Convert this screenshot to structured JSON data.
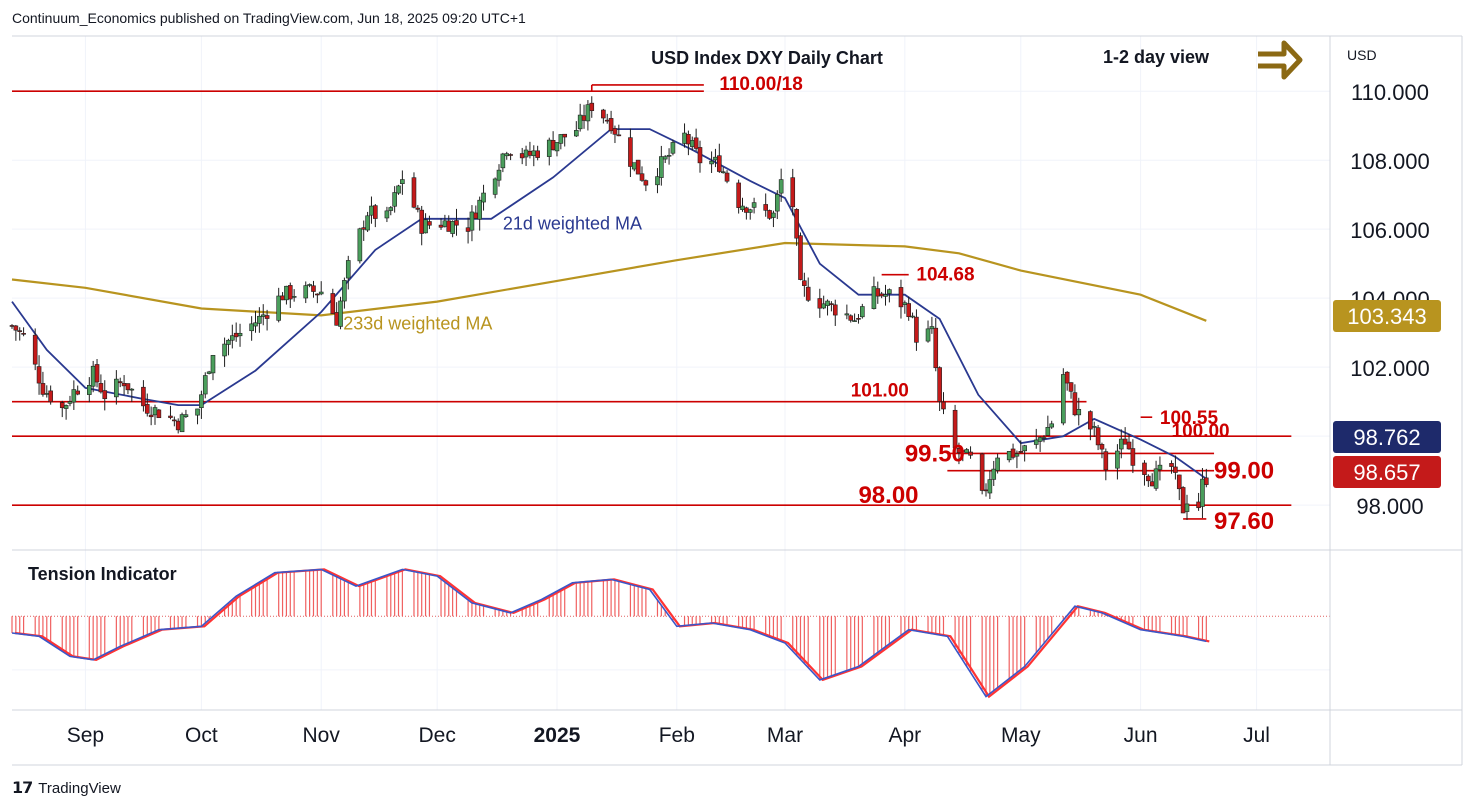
{
  "attribution": "Continuum_Economics published on TradingView.com, Jun 18, 2025 09:20 UTC+1",
  "branding": "TradingView",
  "colors": {
    "up_candle": "#4a9e5c",
    "down_candle": "#c41a1a",
    "level_line": "#cc0000",
    "ma21": "#2a3990",
    "ma233": "#b8941f",
    "tension_line": "#3b56c9",
    "tension_signal": "#ff3333",
    "arrow": "#8b6914",
    "badge_ma233": "#b8941f",
    "badge_ma21": "#1e2a6b",
    "badge_price": "#c41a1a"
  },
  "chart_data": {
    "type": "candlestick",
    "title": "USD Index DXY Daily Chart",
    "view_label": "1-2 day view",
    "icon": "right-arrow-icon",
    "currency": "USD",
    "y_ticks": [
      98,
      100,
      102,
      104,
      106,
      108,
      110
    ],
    "y_tick_labels": [
      "98.000",
      "100.000",
      "102.000",
      "104.000",
      "106.000",
      "108.000",
      "110.000"
    ],
    "ylim": [
      96.7,
      111.6
    ],
    "x_labels": [
      "Sep",
      "Oct",
      "Nov",
      "Dec",
      "2025",
      "Feb",
      "Mar",
      "Apr",
      "May",
      "Jun",
      "Jul"
    ],
    "price_path": [
      [
        "2024-08-13",
        103.2
      ],
      [
        "2024-08-16",
        102.9
      ],
      [
        "2024-08-21",
        101.4
      ],
      [
        "2024-08-26",
        100.8
      ],
      [
        "2024-08-29",
        101.3
      ],
      [
        "2024-09-03",
        101.8
      ],
      [
        "2024-09-06",
        101.2
      ],
      [
        "2024-09-11",
        101.6
      ],
      [
        "2024-09-16",
        100.9
      ],
      [
        "2024-09-20",
        100.7
      ],
      [
        "2024-09-25",
        100.4
      ],
      [
        "2024-09-30",
        100.8
      ],
      [
        "2024-10-04",
        102.5
      ],
      [
        "2024-10-10",
        102.9
      ],
      [
        "2024-10-16",
        103.4
      ],
      [
        "2024-10-22",
        104.1
      ],
      [
        "2024-10-28",
        104.2
      ],
      [
        "2024-11-01",
        104.2
      ],
      [
        "2024-11-05",
        103.4
      ],
      [
        "2024-11-08",
        104.9
      ],
      [
        "2024-11-13",
        106.5
      ],
      [
        "2024-11-18",
        106.3
      ],
      [
        "2024-11-22",
        107.5
      ],
      [
        "2024-11-27",
        106.1
      ],
      [
        "2024-12-03",
        106.2
      ],
      [
        "2024-12-09",
        106.1
      ],
      [
        "2024-12-13",
        107.0
      ],
      [
        "2024-12-19",
        108.4
      ],
      [
        "2024-12-24",
        108.1
      ],
      [
        "2024-12-31",
        108.5
      ],
      [
        "2025-01-06",
        108.9
      ],
      [
        "2025-01-10",
        109.6
      ],
      [
        "2025-01-15",
        109.1
      ],
      [
        "2025-01-20",
        108.0
      ],
      [
        "2025-01-24",
        107.4
      ],
      [
        "2025-01-29",
        108.0
      ],
      [
        "2025-02-03",
        108.7
      ],
      [
        "2025-02-07",
        108.0
      ],
      [
        "2025-02-12",
        107.9
      ],
      [
        "2025-02-17",
        106.8
      ],
      [
        "2025-02-21",
        106.6
      ],
      [
        "2025-02-26",
        106.4
      ],
      [
        "2025-02-28",
        107.4
      ],
      [
        "2025-03-03",
        106.7
      ],
      [
        "2025-03-05",
        104.3
      ],
      [
        "2025-03-10",
        103.9
      ],
      [
        "2025-03-14",
        103.7
      ],
      [
        "2025-03-19",
        103.4
      ],
      [
        "2025-03-24",
        104.1
      ],
      [
        "2025-03-28",
        104.1
      ],
      [
        "2025-04-02",
        103.7
      ],
      [
        "2025-04-04",
        102.9
      ],
      [
        "2025-04-08",
        103.0
      ],
      [
        "2025-04-10",
        100.9
      ],
      [
        "2025-04-14",
        99.6
      ],
      [
        "2025-04-18",
        99.3
      ],
      [
        "2025-04-21",
        98.2
      ],
      [
        "2025-04-25",
        99.5
      ],
      [
        "2025-04-30",
        99.5
      ],
      [
        "2025-05-05",
        99.8
      ],
      [
        "2025-05-09",
        100.4
      ],
      [
        "2025-05-12",
        101.8
      ],
      [
        "2025-05-15",
        100.8
      ],
      [
        "2025-05-20",
        100.1
      ],
      [
        "2025-05-23",
        99.1
      ],
      [
        "2025-05-28",
        99.9
      ],
      [
        "2025-05-30",
        99.4
      ],
      [
        "2025-06-04",
        98.8
      ],
      [
        "2025-06-09",
        99.1
      ],
      [
        "2025-06-12",
        97.9
      ],
      [
        "2025-06-13",
        98.2
      ],
      [
        "2025-06-16",
        98.0
      ],
      [
        "2025-06-17",
        98.6
      ],
      [
        "2025-06-18",
        98.8
      ]
    ],
    "ma21": [
      [
        "2024-08-13",
        103.9
      ],
      [
        "2024-08-22",
        102.5
      ],
      [
        "2024-09-01",
        101.4
      ],
      [
        "2024-09-15",
        101.1
      ],
      [
        "2024-09-25",
        100.9
      ],
      [
        "2024-10-01",
        100.9
      ],
      [
        "2024-10-15",
        101.9
      ],
      [
        "2024-11-01",
        103.6
      ],
      [
        "2024-11-15",
        105.4
      ],
      [
        "2024-11-27",
        106.3
      ],
      [
        "2024-12-15",
        106.3
      ],
      [
        "2024-12-31",
        107.5
      ],
      [
        "2025-01-15",
        108.9
      ],
      [
        "2025-01-25",
        108.9
      ],
      [
        "2025-02-05",
        108.3
      ],
      [
        "2025-02-20",
        107.4
      ],
      [
        "2025-03-01",
        106.9
      ],
      [
        "2025-03-10",
        105.0
      ],
      [
        "2025-03-20",
        104.1
      ],
      [
        "2025-04-01",
        104.1
      ],
      [
        "2025-04-10",
        103.4
      ],
      [
        "2025-04-20",
        101.2
      ],
      [
        "2025-05-01",
        99.8
      ],
      [
        "2025-05-12",
        100.0
      ],
      [
        "2025-05-20",
        100.5
      ],
      [
        "2025-06-01",
        99.9
      ],
      [
        "2025-06-10",
        99.4
      ],
      [
        "2025-06-18",
        98.76
      ]
    ],
    "ma233": [
      [
        "2024-08-13",
        104.54
      ],
      [
        "2024-09-01",
        104.3
      ],
      [
        "2024-10-01",
        103.7
      ],
      [
        "2024-11-01",
        103.5
      ],
      [
        "2024-12-01",
        103.9
      ],
      [
        "2025-01-01",
        104.5
      ],
      [
        "2025-02-01",
        105.1
      ],
      [
        "2025-03-01",
        105.6
      ],
      [
        "2025-04-01",
        105.5
      ],
      [
        "2025-04-15",
        105.3
      ],
      [
        "2025-05-01",
        104.8
      ],
      [
        "2025-06-01",
        104.1
      ],
      [
        "2025-06-18",
        103.343
      ]
    ],
    "levels": [
      {
        "label": "110.00/18",
        "value": 110.0,
        "from": "2024-08-13",
        "to": "2025-02-08"
      },
      {
        "label": "104.68",
        "value": 104.68,
        "from": "2025-03-26",
        "to": "2025-04-02"
      },
      {
        "label": "101.00",
        "value": 101.0,
        "from": "2024-08-13",
        "to": "2025-05-18"
      },
      {
        "label": "100.55",
        "value": 100.55,
        "from": "2025-06-01",
        "to": "2025-06-04"
      },
      {
        "label": "100.00",
        "value": 100.0,
        "from": "2024-08-13",
        "to": "2025-07-10"
      },
      {
        "label": "99.50",
        "value": 99.5,
        "from": "2025-04-12",
        "to": "2025-06-20"
      },
      {
        "label": "99.00",
        "value": 99.0,
        "from": "2025-04-12",
        "to": "2025-06-20"
      },
      {
        "label": "98.00",
        "value": 98.0,
        "from": "2024-08-13",
        "to": "2025-07-10"
      },
      {
        "label": "97.60",
        "value": 97.6,
        "from": "2025-06-12",
        "to": "2025-06-18"
      }
    ],
    "annotations": [
      {
        "text": "21d weighted MA",
        "date": "2025-01-05",
        "value": 106.2
      },
      {
        "text": "233d weighted MA",
        "date": "2024-11-26",
        "value": 103.3
      }
    ],
    "price_badges": [
      {
        "value": "103.343",
        "price": 103.343
      },
      {
        "value": "98.762",
        "price": 98.762
      },
      {
        "value": "98.657",
        "price": 98.657
      }
    ],
    "tension": {
      "label": "Tension Indicator",
      "line": [
        [
          "2024-08-13",
          -0.5
        ],
        [
          "2024-08-20",
          -0.6
        ],
        [
          "2024-08-28",
          -1.2
        ],
        [
          "2024-09-03",
          -1.3
        ],
        [
          "2024-09-10",
          -0.9
        ],
        [
          "2024-09-20",
          -0.4
        ],
        [
          "2024-10-01",
          -0.3
        ],
        [
          "2024-10-10",
          0.6
        ],
        [
          "2024-10-20",
          1.3
        ],
        [
          "2024-11-01",
          1.4
        ],
        [
          "2024-11-10",
          0.9
        ],
        [
          "2024-11-22",
          1.4
        ],
        [
          "2024-12-01",
          1.2
        ],
        [
          "2024-12-10",
          0.4
        ],
        [
          "2024-12-20",
          0.1
        ],
        [
          "2024-12-28",
          0.5
        ],
        [
          "2025-01-05",
          1.0
        ],
        [
          "2025-01-15",
          1.1
        ],
        [
          "2025-01-25",
          0.8
        ],
        [
          "2025-02-01",
          -0.3
        ],
        [
          "2025-02-10",
          -0.2
        ],
        [
          "2025-02-20",
          -0.4
        ],
        [
          "2025-03-01",
          -0.8
        ],
        [
          "2025-03-10",
          -1.9
        ],
        [
          "2025-03-20",
          -1.5
        ],
        [
          "2025-04-02",
          -0.4
        ],
        [
          "2025-04-12",
          -0.6
        ],
        [
          "2025-04-22",
          -2.4
        ],
        [
          "2025-05-02",
          -1.5
        ],
        [
          "2025-05-15",
          0.3
        ],
        [
          "2025-05-22",
          0.1
        ],
        [
          "2025-06-01",
          -0.4
        ],
        [
          "2025-06-12",
          -0.6
        ],
        [
          "2025-06-18",
          -0.75
        ]
      ],
      "ylim": [
        -2.8,
        1.8
      ]
    }
  }
}
